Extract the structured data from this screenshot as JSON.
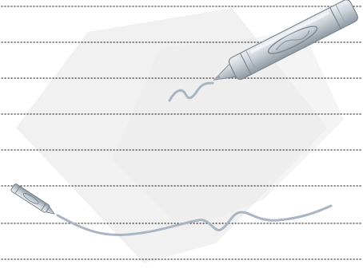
{
  "sheet": {
    "background_color": "#ffffff",
    "line_color": "#3d3d3d",
    "line_style": "dotted",
    "line_count": 8,
    "backdrop_color": "#eeeeee",
    "crayon_color": "#b8c0c8",
    "scribble_color": "#a9b5c2"
  },
  "icons": [
    "paper-backdrop",
    "large-crayon-icon",
    "small-crayon-icon",
    "short-scribble",
    "wavy-scribble"
  ]
}
